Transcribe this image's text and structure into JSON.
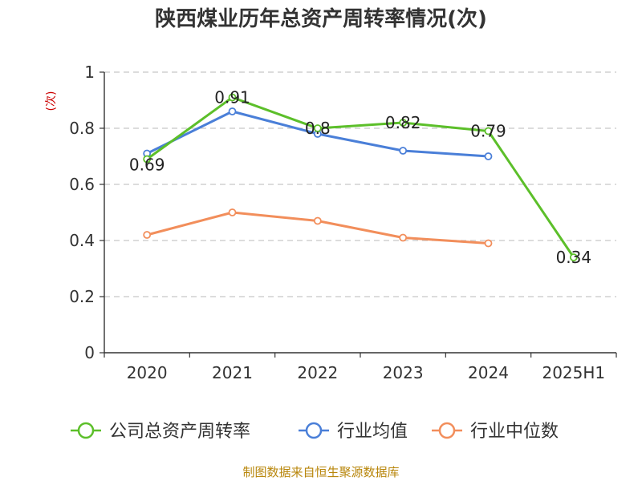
{
  "chart_data": {
    "type": "line",
    "title": "陕西煤业历年总资产周转率情况(次)",
    "ylabel": "(次)",
    "xlabel": "",
    "categories": [
      "2020",
      "2021",
      "2022",
      "2023",
      "2024",
      "2025H1"
    ],
    "ylim": [
      0,
      1
    ],
    "yticks": [
      0,
      0.2,
      0.4,
      0.6,
      0.8,
      1
    ],
    "ytick_labels": [
      "0",
      "0.2",
      "0.4",
      "0.6",
      "0.8",
      "1"
    ],
    "grid": "horizontal dashed",
    "legend_position": "bottom",
    "series": [
      {
        "name": "公司总资产周转率",
        "color": "#5cbf2a",
        "values": [
          0.69,
          0.91,
          0.8,
          0.82,
          0.79,
          0.34
        ],
        "data_labels": [
          "0.69",
          "0.91",
          "0.8",
          "0.82",
          "0.79",
          "0.34"
        ]
      },
      {
        "name": "行业均值",
        "color": "#4a7fd8",
        "values": [
          0.71,
          0.86,
          0.78,
          0.72,
          0.7,
          null
        ]
      },
      {
        "name": "行业中位数",
        "color": "#f28e5b",
        "values": [
          0.42,
          0.5,
          0.47,
          0.41,
          0.39,
          null
        ]
      }
    ]
  },
  "source_note": "制图数据来自恒生聚源数据库"
}
